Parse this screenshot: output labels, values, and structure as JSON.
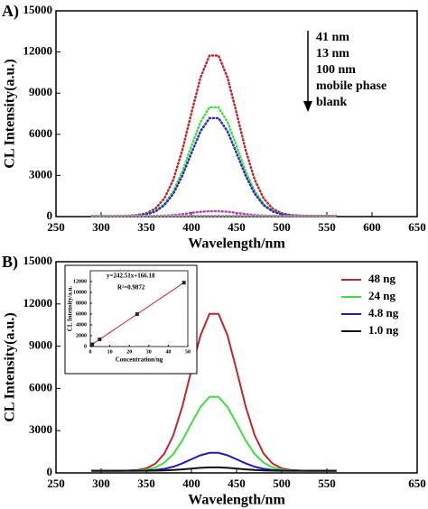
{
  "chart_data": [
    {
      "type": "line",
      "panel": "A)",
      "xlabel": "Wavelength/nm",
      "ylabel": "CL Intensity(a.u.)",
      "line_style": "dotted",
      "legend_samples": false,
      "legend_arrow": true,
      "xlim": [
        250,
        650
      ],
      "xticks": [
        250,
        300,
        350,
        400,
        450,
        500,
        550,
        600,
        650
      ],
      "ylim": [
        0,
        15000
      ],
      "yticks": [
        0,
        3000,
        6000,
        9000,
        12000,
        15000
      ],
      "x": [
        290,
        300,
        310,
        320,
        330,
        340,
        350,
        360,
        370,
        380,
        390,
        400,
        410,
        420,
        430,
        440,
        450,
        460,
        470,
        480,
        490,
        500,
        510,
        520,
        530,
        540,
        550,
        560
      ],
      "series": [
        {
          "name": "41 nm",
          "color": "#c0262d",
          "values": [
            50,
            50,
            50,
            55,
            65,
            110,
            235,
            575,
            1320,
            2700,
            4860,
            7550,
            10130,
            11740,
            11740,
            10130,
            7550,
            4860,
            2700,
            1320,
            575,
            235,
            110,
            65,
            55,
            50,
            50,
            50
          ]
        },
        {
          "name": "13 nm",
          "color": "#3ee03e",
          "values": [
            50,
            50,
            50,
            50,
            60,
            90,
            175,
            405,
            915,
            1850,
            3310,
            5140,
            6890,
            7970,
            7970,
            6890,
            5140,
            3310,
            1850,
            915,
            405,
            175,
            90,
            60,
            50,
            50,
            50,
            50
          ]
        },
        {
          "name": "100 nm",
          "color": "#2a2ad0",
          "values": [
            50,
            50,
            50,
            50,
            60,
            85,
            160,
            370,
            830,
            1670,
            2990,
            4630,
            6210,
            7180,
            7180,
            6210,
            4630,
            2990,
            1670,
            830,
            370,
            160,
            85,
            60,
            50,
            50,
            50,
            50
          ]
        },
        {
          "name": "mobile phase",
          "color": "#c03cc0",
          "values": [
            30,
            30,
            30,
            30,
            30,
            35,
            40,
            50,
            70,
            110,
            180,
            270,
            350,
            395,
            395,
            350,
            270,
            180,
            110,
            70,
            50,
            40,
            35,
            30,
            30,
            30,
            30,
            30
          ]
        },
        {
          "name": "blank",
          "color": "#9a9a9a",
          "values": [
            60,
            60,
            60,
            60,
            60,
            60,
            60,
            60,
            60,
            60,
            60,
            60,
            60,
            60,
            60,
            60,
            60,
            60,
            60,
            60,
            60,
            60,
            60,
            60,
            60,
            60,
            60,
            60
          ]
        }
      ]
    },
    {
      "type": "line",
      "panel": "B)",
      "xlabel": "Wavelength/nm",
      "ylabel": "CL Intensity(a.u.)",
      "line_style": "solid",
      "legend_samples": true,
      "legend_arrow": false,
      "xlim": [
        250,
        650
      ],
      "xticks": [
        250,
        300,
        350,
        400,
        450,
        500,
        550,
        650
      ],
      "ylim": [
        0,
        15000
      ],
      "yticks": [
        0,
        3000,
        6000,
        9000,
        12000,
        15000
      ],
      "x": [
        290,
        300,
        310,
        320,
        330,
        340,
        350,
        360,
        370,
        380,
        390,
        400,
        410,
        420,
        430,
        440,
        450,
        460,
        470,
        480,
        490,
        500,
        510,
        520,
        530,
        540,
        550,
        560
      ],
      "series": [
        {
          "name": "48 ng",
          "color": "#c0262d",
          "values": [
            150,
            150,
            150,
            153,
            165,
            205,
            327,
            650,
            1365,
            2680,
            4735,
            7300,
            9760,
            11300,
            11300,
            9760,
            7300,
            4735,
            2680,
            1365,
            650,
            327,
            205,
            165,
            153,
            150,
            150,
            150
          ]
        },
        {
          "name": "24 ng",
          "color": "#3ee03e",
          "values": [
            150,
            150,
            150,
            152,
            157,
            176,
            233,
            385,
            722,
            1343,
            2311,
            3520,
            4681,
            5404,
            5404,
            4681,
            3520,
            2311,
            1343,
            722,
            385,
            233,
            176,
            157,
            152,
            150,
            150,
            150
          ]
        },
        {
          "name": "4.8 ng",
          "color": "#1c1cb8",
          "values": [
            150,
            150,
            150,
            150,
            152,
            156,
            170,
            207,
            289,
            440,
            675,
            969,
            1251,
            1427,
            1427,
            1251,
            969,
            675,
            440,
            289,
            207,
            170,
            156,
            152,
            150,
            150,
            150,
            150
          ]
        },
        {
          "name": "1.0 ng",
          "color": "#111111",
          "values": [
            150,
            150,
            150,
            150,
            150,
            151,
            154,
            161,
            177,
            206,
            251,
            308,
            362,
            396,
            396,
            362,
            308,
            251,
            206,
            177,
            161,
            154,
            151,
            150,
            150,
            150,
            150,
            150
          ]
        }
      ]
    },
    {
      "type": "scatter",
      "xlabel": "Concentration/ng",
      "ylabel": "CL Intensity/a.u.",
      "equation": "y=242.51x+166.18",
      "r2": "R²=0.9872",
      "xlim": [
        0,
        50
      ],
      "xticks": [
        0,
        10,
        20,
        30,
        40,
        50
      ],
      "ylim": [
        0,
        14000
      ],
      "yticks": [
        0,
        2000,
        4000,
        6000,
        8000,
        10000,
        12000
      ],
      "x": [
        1.0,
        4.8,
        24,
        48
      ],
      "values": [
        410,
        1330,
        5980,
        11800
      ],
      "color": "#222222",
      "fit_x": [
        0,
        48
      ],
      "fit_values": [
        166,
        11807
      ],
      "fit_color": "#d02020"
    }
  ]
}
